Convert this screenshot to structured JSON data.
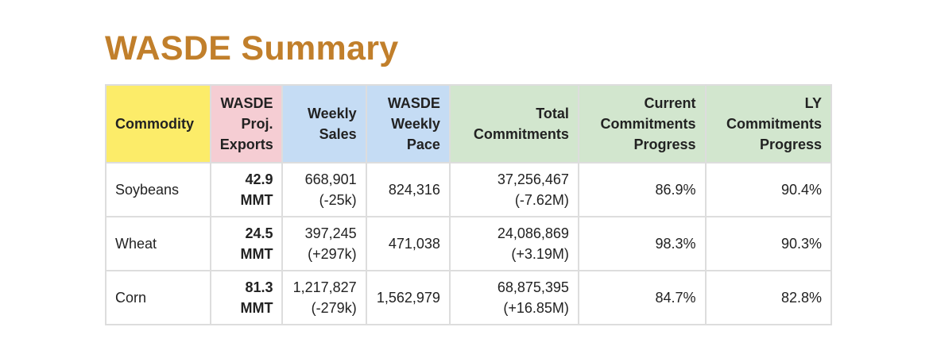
{
  "title": "WASDE Summary",
  "colors": {
    "title": "#c17f2b",
    "header_commodity": "#fcec69",
    "header_proj": "#f5cdd3",
    "header_weekly": "#c5dcf4",
    "header_totals": "#d2e6ce"
  },
  "headers": [
    {
      "lines": [
        "Commodity"
      ]
    },
    {
      "lines": [
        "WASDE",
        "Proj.",
        "Exports"
      ]
    },
    {
      "lines": [
        "Weekly",
        "Sales"
      ]
    },
    {
      "lines": [
        "WASDE",
        "Weekly",
        "Pace"
      ]
    },
    {
      "lines": [
        "Total",
        "Commitments"
      ]
    },
    {
      "lines": [
        "Current",
        "Commitments",
        "Progress"
      ]
    },
    {
      "lines": [
        "LY",
        "Commitments",
        "Progress"
      ]
    }
  ],
  "rows": [
    {
      "commodity": "Soybeans",
      "proj_exports": [
        "42.9",
        "MMT"
      ],
      "weekly_sales": [
        "668,901",
        "(-25k)"
      ],
      "weekly_pace": "824,316",
      "total_commitments": [
        "37,256,467",
        "(-7.62M)"
      ],
      "current_progress": "86.9%",
      "ly_progress": "90.4%"
    },
    {
      "commodity": "Wheat",
      "proj_exports": [
        "24.5",
        "MMT"
      ],
      "weekly_sales": [
        "397,245",
        "(+297k)"
      ],
      "weekly_pace": "471,038",
      "total_commitments": [
        "24,086,869",
        "(+3.19M)"
      ],
      "current_progress": "98.3%",
      "ly_progress": "90.3%"
    },
    {
      "commodity": "Corn",
      "proj_exports": [
        "81.3",
        "MMT"
      ],
      "weekly_sales": [
        "1,217,827",
        "(-279k)"
      ],
      "weekly_pace": "1,562,979",
      "total_commitments": [
        "68,875,395",
        "(+16.85M)"
      ],
      "current_progress": "84.7%",
      "ly_progress": "82.8%"
    }
  ]
}
